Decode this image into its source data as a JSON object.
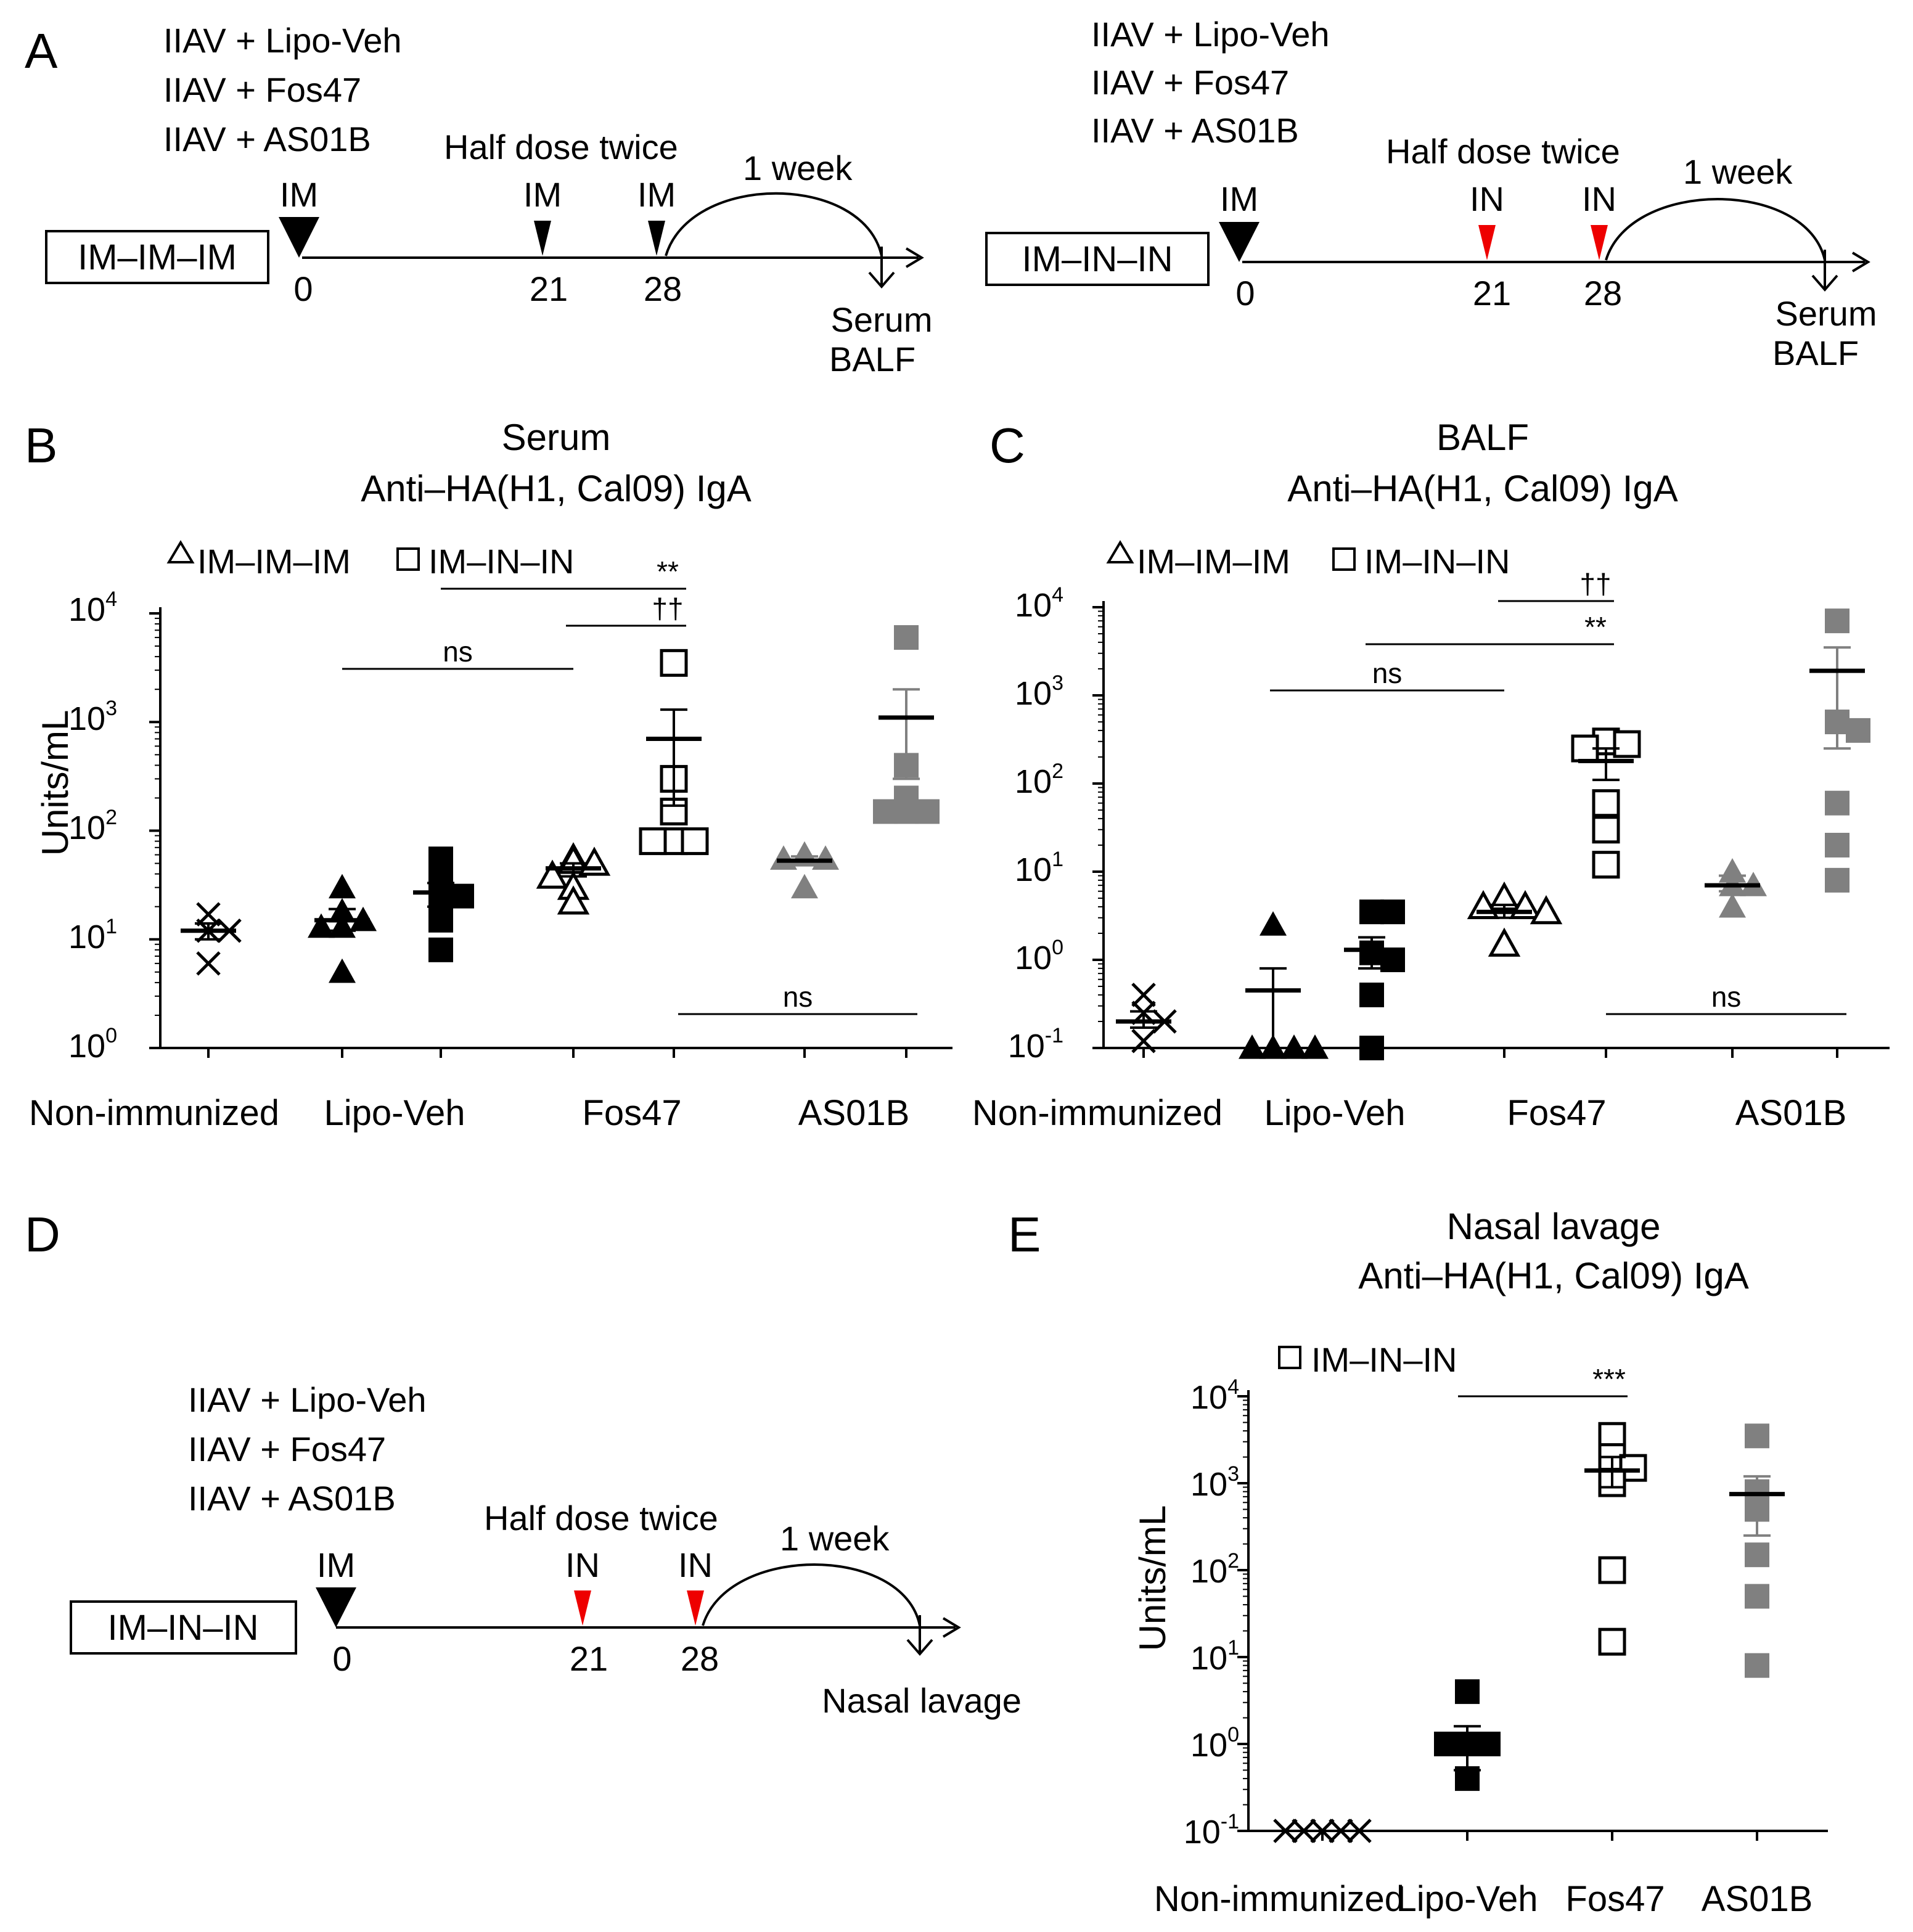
{
  "colors": {
    "gray": "#808080",
    "red": "#ee0000",
    "black": "#000000"
  },
  "scheme_A": [
    {
      "box_label": "IM–IM–IM",
      "groups": [
        "IIAV + Lipo-Veh",
        "IIAV + Fos47",
        "IIAV + AS01B"
      ],
      "note": "Half dose twice",
      "week": "1 week",
      "routes": [
        "IM",
        "IM",
        "IM"
      ],
      "days": [
        "0",
        "21",
        "28"
      ],
      "boost_color": "#000000",
      "out1": "Serum",
      "out2": "BALF"
    },
    {
      "box_label": "IM–IN–IN",
      "groups": [
        "IIAV + Lipo-Veh",
        "IIAV + Fos47",
        "IIAV + AS01B"
      ],
      "note": "Half dose twice",
      "week": "1 week",
      "routes": [
        "IM",
        "IN",
        "IN"
      ],
      "days": [
        "0",
        "21",
        "28"
      ],
      "boost_color": "#ee0000",
      "out1": "Serum",
      "out2": "BALF"
    }
  ],
  "scheme_D": {
    "box_label": "IM–IN–IN",
    "groups": [
      "IIAV + Lipo-Veh",
      "IIAV + Fos47",
      "IIAV + AS01B"
    ],
    "note": "Half dose twice",
    "week": "1 week",
    "routes": [
      "IM",
      "IN",
      "IN"
    ],
    "days": [
      "0",
      "21",
      "28"
    ],
    "boost_color": "#ee0000",
    "out1": "Nasal lavage"
  },
  "chart_data": [
    {
      "panel": "B",
      "type": "scatter",
      "title": "Serum",
      "subtitle": "Anti–HA(H1, Cal09) IgA",
      "ylabel": "Units/mL",
      "yscale": "log",
      "ylim": [
        1,
        10000
      ],
      "y_ticks": [
        {
          "base": "10",
          "exp": "0"
        },
        {
          "base": "10",
          "exp": "1"
        },
        {
          "base": "10",
          "exp": "2"
        },
        {
          "base": "10",
          "exp": "3"
        },
        {
          "base": "10",
          "exp": "4"
        }
      ],
      "legend": [
        {
          "label": "IM–IM–IM",
          "marker": "triangle-open"
        },
        {
          "label": "IM–IN–IN",
          "marker": "square-open"
        }
      ],
      "categories": [
        "Non-immunized",
        "Lipo-Veh",
        "Fos47",
        "AS01B"
      ],
      "series": [
        {
          "name": "Non-immunized",
          "marker": "x",
          "color": "#000000",
          "points": [
            17,
            12,
            12,
            6
          ],
          "mean": 12,
          "sem": [
            10,
            14
          ]
        },
        {
          "name": "Lipo-Veh IM–IM–IM",
          "marker": "triangle-filled",
          "color": "#000000",
          "points": [
            30,
            18,
            13,
            15,
            13,
            5
          ],
          "mean": 15,
          "sem": [
            12,
            19
          ]
        },
        {
          "name": "Lipo-Veh IM–IN–IN",
          "marker": "square-filled",
          "color": "#000000",
          "points": [
            55,
            35,
            25,
            22,
            15,
            8
          ],
          "mean": 27,
          "sem": [
            20,
            33
          ]
        },
        {
          "name": "Fos47 IM–IM–IM",
          "marker": "triangle-open",
          "color": "#000000",
          "points": [
            55,
            52,
            50,
            38,
            30,
            22
          ],
          "mean": 45,
          "sem": [
            38,
            50
          ]
        },
        {
          "name": "Fos47 IM–IN–IN",
          "marker": "square-open",
          "color": "#000000",
          "points": [
            3500,
            300,
            150,
            80,
            80,
            80
          ],
          "mean": 700,
          "sem": [
            170,
            1300
          ]
        },
        {
          "name": "AS01B IM–IM–IM",
          "marker": "triangle-filled",
          "color": "#808080",
          "points": [
            60,
            55,
            55,
            30
          ],
          "mean": 53,
          "sem": [
            48,
            58
          ]
        },
        {
          "name": "AS01B IM–IN–IN",
          "marker": "square-filled",
          "color": "#808080",
          "points": [
            6000,
            400,
            200,
            150,
            150,
            150
          ],
          "mean": 1100,
          "sem": [
            300,
            2000
          ]
        }
      ],
      "comparisons": [
        {
          "label": "††",
          "from": "Fos47 IM–IM–IM",
          "to": "Fos47 IM–IN–IN"
        },
        {
          "label": "**",
          "from": "Lipo-Veh IM–IN–IN",
          "to": "Fos47 IM–IN–IN"
        },
        {
          "label": "ns",
          "from": "Lipo-Veh IM–IM–IM",
          "to": "Fos47 IM–IM–IM"
        },
        {
          "label": "ns",
          "from": "Fos47 IM–IN–IN",
          "to": "AS01B IM–IN–IN"
        }
      ]
    },
    {
      "panel": "C",
      "type": "scatter",
      "title": "BALF",
      "subtitle": "Anti–HA(H1, Cal09) IgA",
      "ylabel": "",
      "yscale": "log",
      "ylim": [
        0.1,
        10000
      ],
      "y_ticks": [
        {
          "base": "10",
          "exp": "-1"
        },
        {
          "base": "10",
          "exp": "0"
        },
        {
          "base": "10",
          "exp": "1"
        },
        {
          "base": "10",
          "exp": "2"
        },
        {
          "base": "10",
          "exp": "3"
        },
        {
          "base": "10",
          "exp": "4"
        }
      ],
      "legend": [
        {
          "label": "IM–IM–IM",
          "marker": "triangle-open"
        },
        {
          "label": "IM–IN–IN",
          "marker": "square-open"
        }
      ],
      "categories": [
        "Non-immunized",
        "Lipo-Veh",
        "Fos47",
        "AS01B"
      ],
      "series": [
        {
          "name": "Non-immunized",
          "marker": "x",
          "color": "#000000",
          "points": [
            0.4,
            0.25,
            0.2,
            0.12
          ],
          "mean": 0.2,
          "sem": [
            0.17,
            0.26
          ]
        },
        {
          "name": "Lipo-Veh IM–IM–IM",
          "marker": "triangle-filled",
          "color": "#000000",
          "points": [
            2.5,
            0.1,
            0.1,
            0.1,
            0.1
          ],
          "mean": 0.45,
          "sem": [
            0.1,
            0.8
          ]
        },
        {
          "name": "Lipo-Veh IM–IN–IN",
          "marker": "square-filled",
          "color": "#000000",
          "points": [
            3.5,
            3.5,
            1.2,
            1.0,
            0.4,
            0.1
          ],
          "mean": 1.3,
          "sem": [
            0.8,
            1.8
          ]
        },
        {
          "name": "Fos47 IM–IM–IM",
          "marker": "triangle-open",
          "color": "#000000",
          "points": [
            5,
            4,
            4,
            3.5,
            1.5
          ],
          "mean": 3.5,
          "sem": [
            3.0,
            4.2
          ]
        },
        {
          "name": "Fos47 IM–IN–IN",
          "marker": "square-open",
          "color": "#000000",
          "points": [
            300,
            280,
            250,
            60,
            30,
            12
          ],
          "mean": 180,
          "sem": [
            110,
            250
          ]
        },
        {
          "name": "AS01B IM–IM–IM",
          "marker": "triangle-filled",
          "color": "#808080",
          "points": [
            10,
            7,
            7,
            4
          ],
          "mean": 7,
          "sem": [
            6,
            9
          ]
        },
        {
          "name": "AS01B IM–IN–IN",
          "marker": "square-filled",
          "color": "#808080",
          "points": [
            7000,
            500,
            400,
            60,
            20,
            8
          ],
          "mean": 1900,
          "sem": [
            250,
            3500
          ]
        }
      ],
      "comparisons": [
        {
          "label": "††",
          "from": "Fos47 IM–IM–IM",
          "to": "Fos47 IM–IN–IN"
        },
        {
          "label": "**",
          "from": "Lipo-Veh IM–IN–IN",
          "to": "Fos47 IM–IN–IN"
        },
        {
          "label": "ns",
          "from": "Lipo-Veh IM–IM–IM",
          "to": "Fos47 IM–IM–IM"
        },
        {
          "label": "ns",
          "from": "Fos47 IM–IN–IN",
          "to": "AS01B IM–IN–IN"
        }
      ]
    },
    {
      "panel": "E",
      "type": "scatter",
      "title": "Nasal lavage",
      "subtitle": "Anti–HA(H1, Cal09) IgA",
      "ylabel": "Units/mL",
      "yscale": "log",
      "ylim": [
        0.1,
        10000
      ],
      "y_ticks": [
        {
          "base": "10",
          "exp": "-1"
        },
        {
          "base": "10",
          "exp": "0"
        },
        {
          "base": "10",
          "exp": "1"
        },
        {
          "base": "10",
          "exp": "2"
        },
        {
          "base": "10",
          "exp": "3"
        },
        {
          "base": "10",
          "exp": "4"
        }
      ],
      "legend": [
        {
          "label": "IM–IN–IN",
          "marker": "square-open"
        }
      ],
      "categories": [
        "Non-immunized",
        "Lipo-Veh",
        "Fos47",
        "AS01B"
      ],
      "series": [
        {
          "name": "Non-immunized",
          "marker": "x",
          "color": "#000000",
          "points": [
            0.1,
            0.1,
            0.1,
            0.1,
            0.1
          ],
          "mean": null,
          "sem": null
        },
        {
          "name": "Lipo-Veh",
          "marker": "square-filled",
          "color": "#000000",
          "points": [
            4,
            1.0,
            1.0,
            1.0,
            0.4
          ],
          "mean": 1.0,
          "sem": [
            0.5,
            1.6
          ]
        },
        {
          "name": "Fos47",
          "marker": "square-open",
          "color": "#000000",
          "points": [
            3500,
            2000,
            1500,
            1000,
            100,
            15
          ],
          "mean": 1400,
          "sem": [
            900,
            2000
          ]
        },
        {
          "name": "AS01B",
          "marker": "square-filled",
          "color": "#808080",
          "points": [
            3500,
            800,
            500,
            150,
            50,
            8
          ],
          "mean": 750,
          "sem": [
            250,
            1200
          ]
        }
      ],
      "comparisons": [
        {
          "label": "***",
          "from": "Lipo-Veh",
          "to": "Fos47"
        }
      ]
    }
  ]
}
